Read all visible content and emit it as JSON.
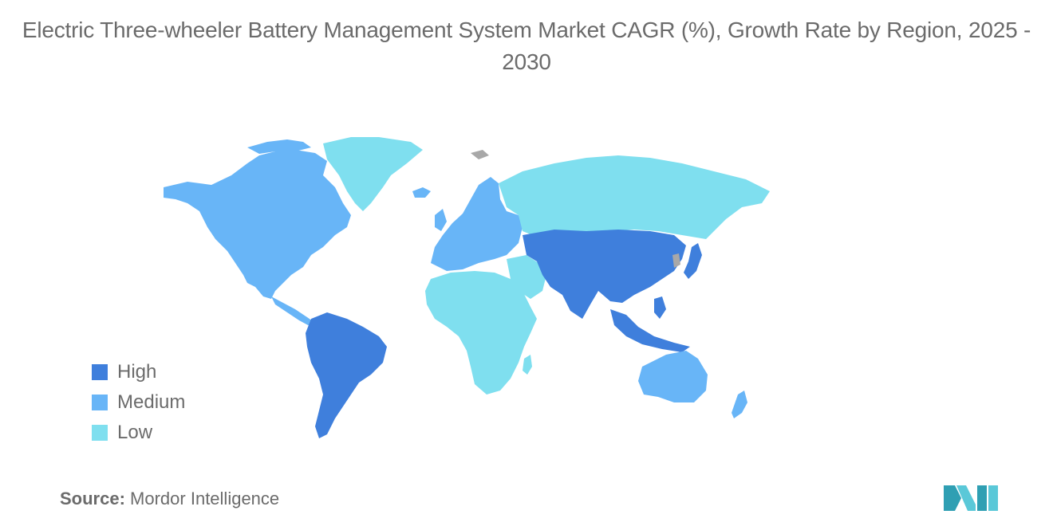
{
  "title": "Electric Three-wheeler Battery Management System Market CAGR (%), Growth Rate by Region, 2025 - 2030",
  "legend": [
    {
      "label": "High",
      "color": "#3f7fdc"
    },
    {
      "label": "Medium",
      "color": "#68b5f7"
    },
    {
      "label": "Low",
      "color": "#7fdfef"
    }
  ],
  "colors": {
    "high": "#3f7fdc",
    "medium": "#68b5f7",
    "low": "#7fdfef",
    "no_data": "#a8a8a8",
    "text": "#6b6b6b"
  },
  "regions": {
    "north_america": "Medium",
    "europe": "Medium",
    "australia_nz": "Medium",
    "south_america": "High",
    "asia": "High",
    "southeast_asia": "High",
    "russia": "Low",
    "greenland": "Low",
    "africa": "Low",
    "middle_east": "Low"
  },
  "source": {
    "label": "Source:",
    "value": "Mordor Intelligence"
  },
  "logo": {
    "icon": "mordor-intelligence-logo"
  }
}
